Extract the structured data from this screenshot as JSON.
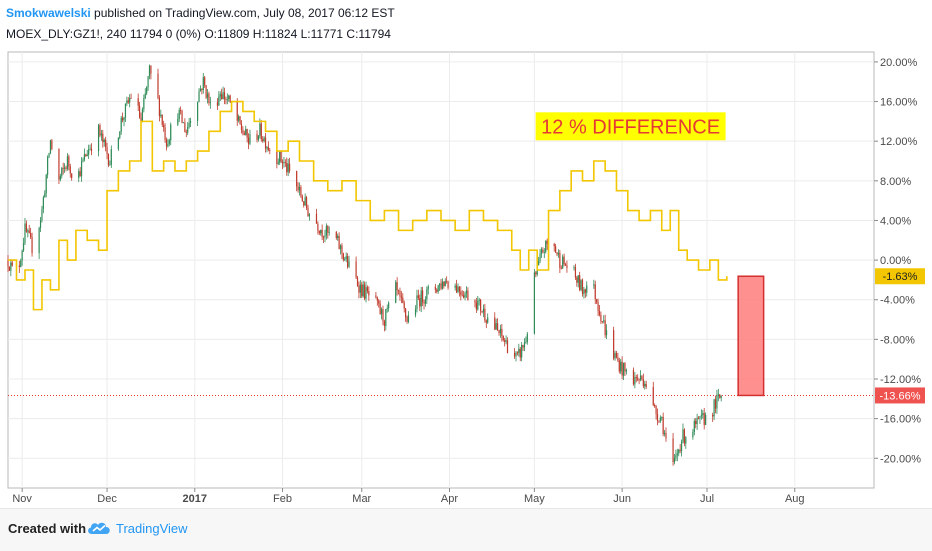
{
  "header": {
    "author": "Smokwawelski",
    "published": " published on TradingView.com, July 08, 2017 06:12 EST",
    "symbol_line": "MOEX_DLY:GZ1!, 240  11794 0 (0%)  O:11809 H:11824 L:11771 C:11794"
  },
  "footer": {
    "created_with": "Created with",
    "brand": "TradingView"
  },
  "colors": {
    "yellow_line": "#f2c600",
    "up_candle": "#2e8b57",
    "down_candle": "#c0392b",
    "current_price_line": "#e53935",
    "current_price_tag": "#ef5350",
    "yellow_tag": "#f2c600",
    "difference_box_fill": "#ff7c7c",
    "difference_box_border": "#d32f2f",
    "annotation_bg": "#ffff00",
    "annotation_text": "#e53935"
  },
  "chart_data": {
    "type": "line",
    "y_unit": "percent change",
    "ylim": [
      -23,
      21
    ],
    "yticks": [
      20,
      16,
      12,
      8,
      4,
      0,
      -4,
      -8,
      -12,
      -16,
      -20
    ],
    "ytick_labels": [
      "20.00%",
      "16.00%",
      "12.00%",
      "8.00%",
      "4.00%",
      "0.00%",
      "-4.00%",
      "-8.00%",
      "-12.00%",
      "-16.00%",
      "-20.00%"
    ],
    "xlim": [
      "2016-10-27",
      "2017-08-29"
    ],
    "xticks": [
      {
        "date": "2016-11-01",
        "label": "Nov",
        "bold": false
      },
      {
        "date": "2016-12-01",
        "label": "Dec",
        "bold": false
      },
      {
        "date": "2017-01-01",
        "label": "2017",
        "bold": true
      },
      {
        "date": "2017-02-01",
        "label": "Feb",
        "bold": false
      },
      {
        "date": "2017-03-01",
        "label": "Mar",
        "bold": false
      },
      {
        "date": "2017-04-01",
        "label": "Apr",
        "bold": false
      },
      {
        "date": "2017-05-01",
        "label": "May",
        "bold": false
      },
      {
        "date": "2017-06-01",
        "label": "Jun",
        "bold": false
      },
      {
        "date": "2017-07-01",
        "label": "Jul",
        "bold": false
      },
      {
        "date": "2017-08-01",
        "label": "Aug",
        "bold": false
      }
    ],
    "series": [
      {
        "style": "candles",
        "points": [
          [
            "2016-10-27",
            0
          ],
          [
            "2016-10-30",
            -2
          ],
          [
            "2016-11-02",
            3
          ],
          [
            "2016-11-05",
            1
          ],
          [
            "2016-11-08",
            5
          ],
          [
            "2016-11-11",
            12
          ],
          [
            "2016-11-14",
            8
          ],
          [
            "2016-11-17",
            10
          ],
          [
            "2016-11-20",
            8
          ],
          [
            "2016-11-24",
            11
          ],
          [
            "2016-11-28",
            13
          ],
          [
            "2016-12-02",
            10
          ],
          [
            "2016-12-06",
            14
          ],
          [
            "2016-12-10",
            17
          ],
          [
            "2016-12-13",
            14
          ],
          [
            "2016-12-16",
            19
          ],
          [
            "2016-12-19",
            16
          ],
          [
            "2016-12-22",
            12
          ],
          [
            "2016-12-26",
            15
          ],
          [
            "2016-12-29",
            13
          ],
          [
            "2017-01-01",
            16
          ],
          [
            "2017-01-04",
            18
          ],
          [
            "2017-01-07",
            15
          ],
          [
            "2017-01-10",
            17
          ],
          [
            "2017-01-13",
            16
          ],
          [
            "2017-01-16",
            14
          ],
          [
            "2017-01-20",
            12
          ],
          [
            "2017-01-24",
            13
          ],
          [
            "2017-01-28",
            11
          ],
          [
            "2017-02-01",
            10
          ],
          [
            "2017-02-05",
            8
          ],
          [
            "2017-02-10",
            5
          ],
          [
            "2017-02-15",
            3
          ],
          [
            "2017-02-20",
            2
          ],
          [
            "2017-02-25",
            -1
          ],
          [
            "2017-03-01",
            -3
          ],
          [
            "2017-03-05",
            -4
          ],
          [
            "2017-03-09",
            -6
          ],
          [
            "2017-03-13",
            -3
          ],
          [
            "2017-03-17",
            -6
          ],
          [
            "2017-03-21",
            -4
          ],
          [
            "2017-03-26",
            -3
          ],
          [
            "2017-03-31",
            -2
          ],
          [
            "2017-04-05",
            -3
          ],
          [
            "2017-04-10",
            -4
          ],
          [
            "2017-04-15",
            -6
          ],
          [
            "2017-04-20",
            -8
          ],
          [
            "2017-04-25",
            -10
          ],
          [
            "2017-04-28",
            -8
          ],
          [
            "2017-05-01",
            -2
          ],
          [
            "2017-05-04",
            1
          ],
          [
            "2017-05-07",
            2
          ],
          [
            "2017-05-10",
            0
          ],
          [
            "2017-05-14",
            -1
          ],
          [
            "2017-05-18",
            -3
          ],
          [
            "2017-05-21",
            -2
          ],
          [
            "2017-05-24",
            -5
          ],
          [
            "2017-05-28",
            -9
          ],
          [
            "2017-06-01",
            -11
          ],
          [
            "2017-06-05",
            -12
          ],
          [
            "2017-06-09",
            -12
          ],
          [
            "2017-06-12",
            -15
          ],
          [
            "2017-06-15",
            -16
          ],
          [
            "2017-06-17",
            -19
          ],
          [
            "2017-06-19",
            -21
          ],
          [
            "2017-06-22",
            -18
          ],
          [
            "2017-06-26",
            -17
          ],
          [
            "2017-06-30",
            -16
          ],
          [
            "2017-07-03",
            -15
          ],
          [
            "2017-07-06",
            -13.66
          ]
        ]
      },
      {
        "style": "line",
        "color": "yellow",
        "points": [
          [
            "2016-10-27",
            0
          ],
          [
            "2016-10-30",
            -2
          ],
          [
            "2016-11-02",
            -1
          ],
          [
            "2016-11-05",
            -5
          ],
          [
            "2016-11-08",
            -2
          ],
          [
            "2016-11-11",
            -3
          ],
          [
            "2016-11-14",
            2
          ],
          [
            "2016-11-17",
            0
          ],
          [
            "2016-11-20",
            3
          ],
          [
            "2016-11-24",
            2
          ],
          [
            "2016-11-28",
            1
          ],
          [
            "2016-12-01",
            7
          ],
          [
            "2016-12-05",
            9
          ],
          [
            "2016-12-09",
            10
          ],
          [
            "2016-12-13",
            14
          ],
          [
            "2016-12-17",
            9
          ],
          [
            "2016-12-21",
            10
          ],
          [
            "2016-12-25",
            9
          ],
          [
            "2016-12-29",
            10
          ],
          [
            "2017-01-02",
            11
          ],
          [
            "2017-01-06",
            13
          ],
          [
            "2017-01-10",
            15
          ],
          [
            "2017-01-14",
            16
          ],
          [
            "2017-01-18",
            15
          ],
          [
            "2017-01-22",
            14
          ],
          [
            "2017-01-26",
            13
          ],
          [
            "2017-01-30",
            11
          ],
          [
            "2017-02-03",
            12
          ],
          [
            "2017-02-07",
            10
          ],
          [
            "2017-02-12",
            8
          ],
          [
            "2017-02-17",
            7
          ],
          [
            "2017-02-22",
            8
          ],
          [
            "2017-02-27",
            6
          ],
          [
            "2017-03-04",
            4
          ],
          [
            "2017-03-09",
            5
          ],
          [
            "2017-03-14",
            3
          ],
          [
            "2017-03-19",
            4
          ],
          [
            "2017-03-24",
            5
          ],
          [
            "2017-03-29",
            4
          ],
          [
            "2017-04-03",
            3
          ],
          [
            "2017-04-08",
            5
          ],
          [
            "2017-04-13",
            4
          ],
          [
            "2017-04-18",
            3
          ],
          [
            "2017-04-23",
            1
          ],
          [
            "2017-04-26",
            -1
          ],
          [
            "2017-04-29",
            1
          ],
          [
            "2017-05-02",
            -1
          ],
          [
            "2017-05-06",
            5
          ],
          [
            "2017-05-10",
            7
          ],
          [
            "2017-05-14",
            9
          ],
          [
            "2017-05-18",
            8
          ],
          [
            "2017-05-22",
            10
          ],
          [
            "2017-05-26",
            9
          ],
          [
            "2017-05-30",
            7
          ],
          [
            "2017-06-03",
            5
          ],
          [
            "2017-06-07",
            4
          ],
          [
            "2017-06-11",
            5
          ],
          [
            "2017-06-15",
            3
          ],
          [
            "2017-06-18",
            5
          ],
          [
            "2017-06-21",
            1
          ],
          [
            "2017-06-24",
            0
          ],
          [
            "2017-06-28",
            -1
          ],
          [
            "2017-07-02",
            0
          ],
          [
            "2017-07-05",
            -2
          ],
          [
            "2017-07-08",
            -1.63
          ]
        ]
      }
    ],
    "price_tags": [
      {
        "value": -1.63,
        "label": "-1.63%",
        "series": "yellow"
      },
      {
        "value": -13.66,
        "label": "-13.66%",
        "series": "candles"
      }
    ],
    "annotations": [
      {
        "text": "12 % DIFFERENCE",
        "x": "2017-06-04",
        "y": 13.5
      },
      {
        "type": "rectangle",
        "x0": "2017-07-12",
        "x1": "2017-07-21",
        "y0": -1.63,
        "y1": -13.66
      }
    ],
    "grid": true
  }
}
